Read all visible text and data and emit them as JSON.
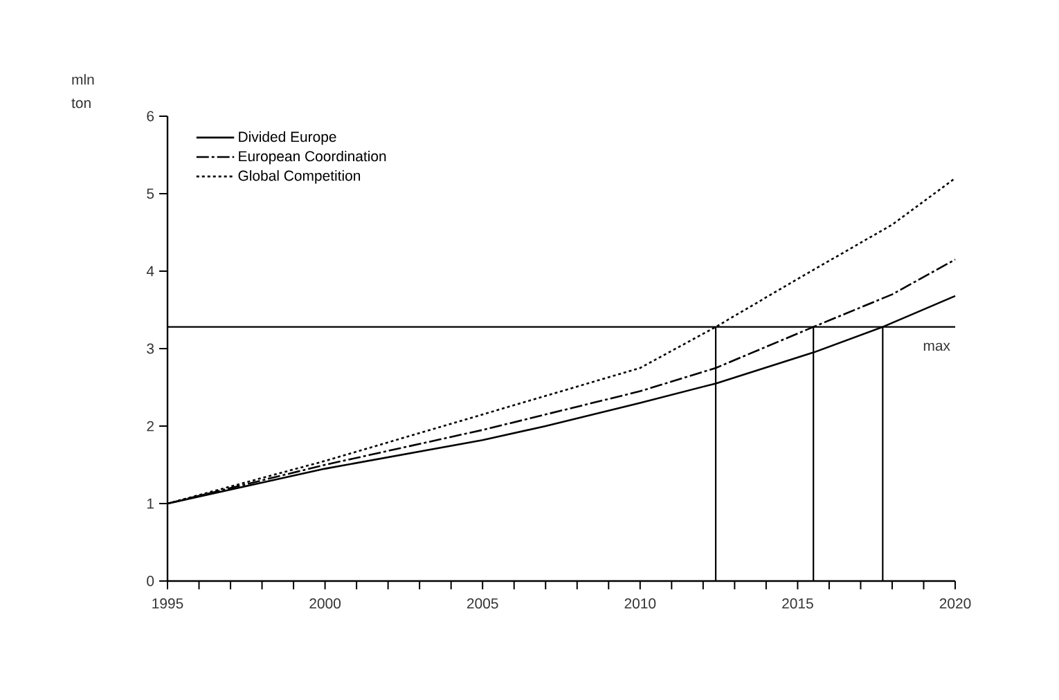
{
  "chart_data": {
    "type": "line",
    "ylabel": "mln ton",
    "xlim": [
      1995,
      2020
    ],
    "ylim": [
      0,
      6
    ],
    "xticks": [
      1995,
      {
        "value": 1996,
        "label": null
      },
      {
        "value": 1997,
        "label": null
      },
      {
        "value": 1998,
        "label": null
      },
      {
        "value": 1999,
        "label": null
      },
      2000,
      {
        "value": 2001,
        "label": null
      },
      {
        "value": 2002,
        "label": null
      },
      {
        "value": 2003,
        "label": null
      },
      {
        "value": 2004,
        "label": null
      },
      2005,
      {
        "value": 2006,
        "label": null
      },
      {
        "value": 2007,
        "label": null
      },
      {
        "value": 2008,
        "label": null
      },
      {
        "value": 2009,
        "label": null
      },
      2010,
      {
        "value": 2011,
        "label": null
      },
      {
        "value": 2012,
        "label": null
      },
      {
        "value": 2013,
        "label": null
      },
      {
        "value": 2014,
        "label": null
      },
      2015,
      {
        "value": 2016,
        "label": null
      },
      {
        "value": 2017,
        "label": null
      },
      {
        "value": 2018,
        "label": null
      },
      {
        "value": 2019,
        "label": null
      },
      2020
    ],
    "yticks": [
      0,
      1,
      2,
      3,
      4,
      5,
      6
    ],
    "legend": "top left",
    "grid": false,
    "series": [
      {
        "name": "Divided Europe",
        "color": "#000000",
        "line_style": "solid",
        "x": [
          1995,
          2000,
          2005,
          2007,
          2010,
          2012.4,
          2015.5,
          2017.7,
          2020
        ],
        "values": [
          1.0,
          1.45,
          1.82,
          2.0,
          2.3,
          2.55,
          2.95,
          3.28,
          3.68
        ]
      },
      {
        "name": "European Coordination",
        "color": "#000000",
        "line_style": "dashed",
        "x": [
          1995,
          2000,
          2005,
          2010,
          2012.4,
          2015.5,
          2018,
          2020
        ],
        "values": [
          1.0,
          1.5,
          1.95,
          2.45,
          2.75,
          3.28,
          3.7,
          4.15
        ]
      },
      {
        "name": "Global Competition",
        "color": "#000000",
        "line_style": "dotted",
        "x": [
          1995,
          2000,
          2005,
          2010,
          2012.4,
          2015,
          2018,
          2020
        ],
        "values": [
          1.0,
          1.55,
          2.15,
          2.75,
          3.28,
          3.9,
          4.6,
          5.2
        ]
      }
    ],
    "ref_lines": [
      {
        "axis": "y",
        "value": 3.28,
        "label": "max",
        "color": "#000000"
      },
      {
        "axis": "x",
        "value": 2012.4,
        "color": "#000000"
      },
      {
        "axis": "x",
        "value": 2015.5,
        "color": "#000000"
      },
      {
        "axis": "x",
        "value": 2017.7,
        "color": "#000000"
      }
    ]
  }
}
